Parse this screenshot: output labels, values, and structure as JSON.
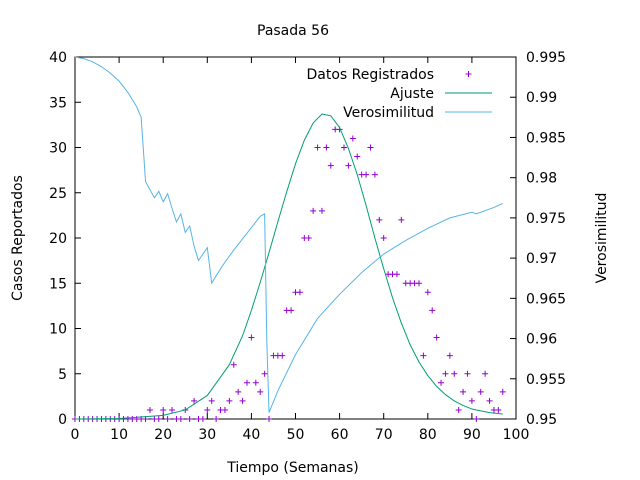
{
  "chart_data": {
    "type": "line",
    "title": "Pasada 56",
    "xlabel": "Tiempo (Semanas)",
    "ylabel": "Casos Reportados",
    "y2label": "Verosimilitud",
    "xlim": [
      0,
      100
    ],
    "ylim": [
      0,
      40
    ],
    "y2lim": [
      0.95,
      0.995
    ],
    "x_ticks": [
      0,
      10,
      20,
      30,
      40,
      50,
      60,
      70,
      80,
      90,
      100
    ],
    "y_ticks": [
      0,
      5,
      10,
      15,
      20,
      25,
      30,
      35,
      40
    ],
    "y2_ticks": [
      "0.95",
      "0.955",
      "0.96",
      "0.965",
      "0.97",
      "0.975",
      "0.98",
      "0.985",
      "0.99",
      "0.995"
    ],
    "grid": false,
    "legend_position": "top-right",
    "series": [
      {
        "name": "Datos Registrados",
        "kind": "points",
        "axis": "left",
        "color": "#9400d3",
        "x": [
          0,
          1,
          2,
          3,
          4,
          5,
          6,
          7,
          8,
          9,
          10,
          11,
          12,
          13,
          14,
          15,
          16,
          17,
          18,
          19,
          20,
          21,
          22,
          23,
          24,
          25,
          26,
          27,
          28,
          29,
          30,
          31,
          32,
          33,
          34,
          35,
          36,
          37,
          38,
          39,
          40,
          41,
          42,
          43,
          44,
          45,
          46,
          47,
          48,
          49,
          50,
          51,
          52,
          53,
          54,
          55,
          56,
          57,
          58,
          59,
          60,
          61,
          62,
          63,
          64,
          65,
          66,
          67,
          68,
          69,
          70,
          71,
          72,
          73,
          74,
          75,
          76,
          77,
          78,
          79,
          80,
          81,
          82,
          83,
          84,
          85,
          86,
          87,
          88,
          89,
          90,
          91,
          92,
          93,
          94,
          95,
          96,
          97
        ],
        "y": [
          0,
          0,
          0,
          0,
          0,
          0,
          0,
          0,
          0,
          0,
          0,
          0,
          0,
          0,
          0,
          0,
          0,
          1,
          0,
          0,
          1,
          0,
          1,
          0,
          0,
          1,
          0,
          2,
          0,
          0,
          1,
          2,
          0,
          1,
          1,
          2,
          6,
          3,
          2,
          4,
          9,
          4,
          3,
          5,
          0,
          7,
          7,
          7,
          12,
          12,
          14,
          14,
          20,
          20,
          23,
          30,
          23,
          30,
          28,
          32,
          32,
          30,
          28,
          31,
          29,
          27,
          27,
          30,
          27,
          22,
          20,
          16,
          16,
          16,
          22,
          15,
          15,
          15,
          15,
          7,
          14,
          12,
          9,
          4,
          5,
          7,
          5,
          1,
          3,
          5,
          2,
          0,
          3,
          5,
          2,
          1,
          1,
          3
        ]
      },
      {
        "name": "Ajuste",
        "kind": "line",
        "axis": "left",
        "color": "#009e73",
        "x": [
          0,
          10,
          20,
          25,
          30,
          35,
          38,
          40,
          42,
          44,
          46,
          48,
          50,
          52,
          54,
          56,
          58,
          60,
          62,
          64,
          66,
          68,
          70,
          72,
          74,
          76,
          78,
          80,
          82,
          84,
          86,
          88,
          90,
          92,
          94,
          96,
          97
        ],
        "y": [
          0,
          0.05,
          0.4,
          1.0,
          2.6,
          6.0,
          9.2,
          12.0,
          15.1,
          18.4,
          21.8,
          25.1,
          28.2,
          30.8,
          32.7,
          33.7,
          33.5,
          32.2,
          29.9,
          27.0,
          23.6,
          20.0,
          16.6,
          13.4,
          10.6,
          8.2,
          6.3,
          4.8,
          3.6,
          2.7,
          2.0,
          1.5,
          1.1,
          0.9,
          0.7,
          0.6,
          0.55
        ]
      },
      {
        "name": "Verosimilitud",
        "kind": "line",
        "axis": "right",
        "color": "#56b4e9",
        "x": [
          0,
          2,
          4,
          6,
          8,
          10,
          12,
          14,
          15,
          16,
          17,
          18,
          19,
          20,
          21,
          22,
          23,
          24,
          25,
          26,
          27,
          28,
          29,
          30,
          31,
          32,
          34,
          36,
          38,
          40,
          42,
          43,
          43.5,
          44,
          46,
          50,
          55,
          60,
          65,
          70,
          75,
          80,
          85,
          90,
          91,
          95,
          97
        ],
        "y": [
          0.995,
          0.9948,
          0.9944,
          0.9938,
          0.993,
          0.992,
          0.9906,
          0.9888,
          0.9875,
          0.9795,
          0.9785,
          0.9775,
          0.9783,
          0.977,
          0.978,
          0.9762,
          0.9745,
          0.9755,
          0.9732,
          0.974,
          0.9715,
          0.9697,
          0.9705,
          0.9713,
          0.9669,
          0.9678,
          0.9695,
          0.971,
          0.9724,
          0.9738,
          0.9752,
          0.9755,
          0.9595,
          0.9508,
          0.9535,
          0.958,
          0.9625,
          0.9655,
          0.9682,
          0.9705,
          0.9722,
          0.9737,
          0.975,
          0.9757,
          0.9755,
          0.9763,
          0.9768
        ]
      }
    ]
  }
}
